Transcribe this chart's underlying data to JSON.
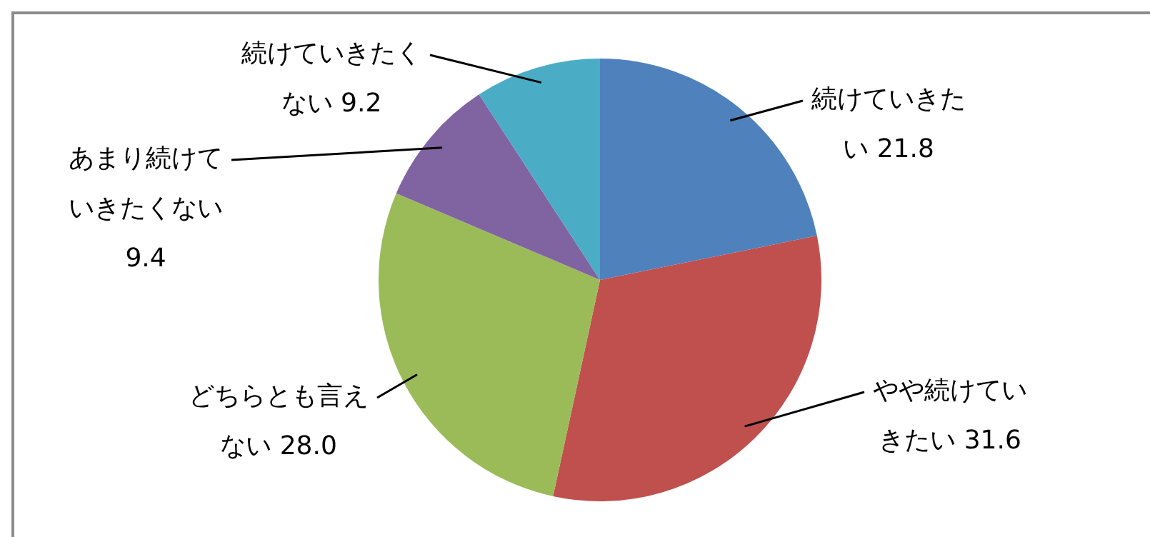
{
  "chart_data": {
    "type": "pie",
    "categories": [
      "続けていきたい",
      "やや続けていきたい",
      "どちらとも言えない",
      "あまり続けていきたくない",
      "続けていきたくない"
    ],
    "values": [
      21.8,
      31.6,
      28.0,
      9.4,
      9.2
    ],
    "value_labels": [
      "21.8",
      "31.6",
      "28.0",
      "9.4",
      "9.2"
    ],
    "colors": [
      "#4f81bd",
      "#c0504d",
      "#9bbb59",
      "#8064a2",
      "#4bacc6"
    ],
    "legend": false
  }
}
